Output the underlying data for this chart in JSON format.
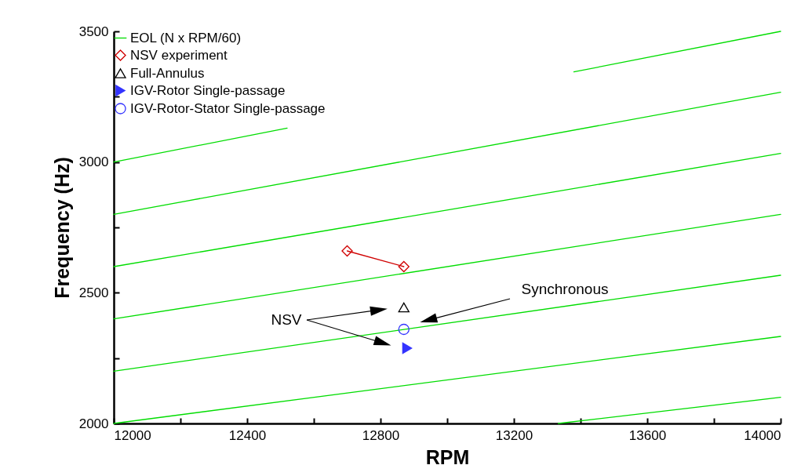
{
  "chart_data": {
    "type": "line",
    "xlabel": "RPM",
    "ylabel": "Frequency (Hz)",
    "xlim": [
      12000,
      14000
    ],
    "ylim": [
      2000,
      3500
    ],
    "xticks": [
      12000,
      {
        "value": 12200,
        "label": null
      },
      12400,
      {
        "value": 12600,
        "label": null
      },
      12800,
      {
        "value": 13000,
        "label": null
      },
      13200,
      {
        "value": 13400,
        "label": null
      },
      13600,
      {
        "value": 13800,
        "label": null
      },
      14000
    ],
    "yticks": [
      2000,
      {
        "value": 2250,
        "label": null
      },
      2500,
      {
        "value": 2750,
        "label": null
      },
      3000,
      {
        "value": 3250,
        "label": null
      },
      3500
    ],
    "grid": false,
    "legend": "top left",
    "series": [
      {
        "name": "EOL (N x RPM/60)",
        "marker": "none",
        "color": "#00dd00",
        "x": [
          12000,
          14000
        ],
        "values": [
          2000,
          2333
        ]
      },
      {
        "marker": "none",
        "color": "#00dd00",
        "x": [
          13333,
          14000
        ],
        "values": [
          2000,
          2100
        ]
      },
      {
        "marker": "none",
        "color": "#00dd00",
        "x": [
          12000,
          14000
        ],
        "values": [
          2200,
          2567
        ]
      },
      {
        "marker": "none",
        "color": "#00dd00",
        "x": [
          12000,
          14000
        ],
        "values": [
          2400,
          2800
        ]
      },
      {
        "marker": "none",
        "color": "#00dd00",
        "x": [
          12000,
          14000
        ],
        "values": [
          2600,
          3033
        ]
      },
      {
        "marker": "none",
        "color": "#00dd00",
        "x": [
          12000,
          14000
        ],
        "values": [
          2800,
          3267
        ]
      },
      {
        "marker": "none",
        "color": "#00dd00",
        "x": [
          12000,
          12520,
          12950,
          13380,
          14000
        ],
        "values": [
          3000,
          3130,
          null,
          3345,
          3500
        ]
      },
      {
        "name": "NSV experiment",
        "marker": "diamond",
        "color": "#d00000",
        "x": [
          12700,
          12870
        ],
        "values": [
          2660,
          2600
        ]
      },
      {
        "name": "Full-Annulus",
        "type": "scatter",
        "marker": "triangle",
        "color": "#000000",
        "x": [
          12870
        ],
        "values": [
          2444
        ]
      },
      {
        "name": "IGV-Rotor Single-passage",
        "type": "scatter",
        "marker": "triangle-right",
        "color": "#3333ff",
        "x": [
          12880
        ],
        "values": [
          2288
        ]
      },
      {
        "name": "IGV-Rotor-Stator Single-passage",
        "type": "scatter",
        "marker": "circle",
        "color": "#3333ff",
        "x": [
          12870
        ],
        "values": [
          2360
        ]
      }
    ],
    "annotations": [
      "NSV",
      "Synchronous"
    ]
  }
}
